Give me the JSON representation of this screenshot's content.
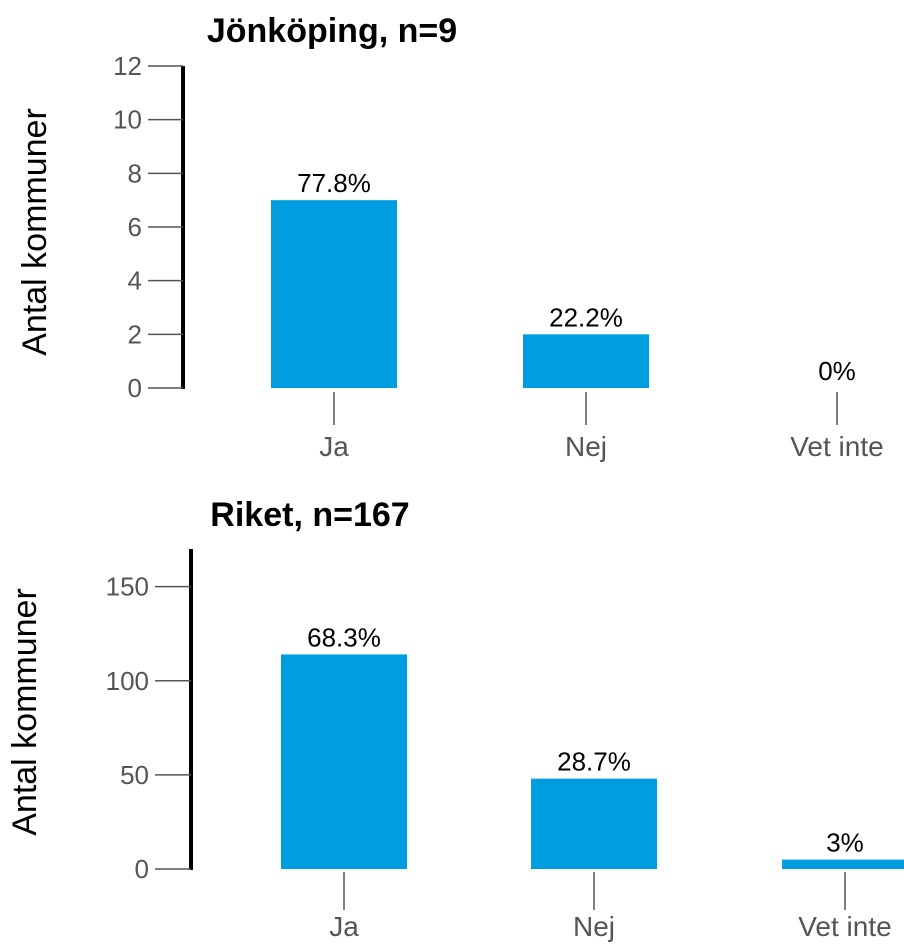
{
  "chart_data": [
    {
      "type": "bar",
      "title": "Jönköping, n=9",
      "ylabel": "Antal kommuner",
      "xlabel": "",
      "categories": [
        "Ja",
        "Nej",
        "Vet inte"
      ],
      "values": [
        7,
        2,
        0
      ],
      "data_labels": [
        "77.8%",
        "22.2%",
        "0%"
      ],
      "ylim": [
        0,
        12
      ],
      "yticks": [
        0,
        2,
        4,
        6,
        8,
        10,
        12
      ],
      "ytick_labels": [
        "0",
        "2",
        "4",
        "6",
        "8",
        "10",
        "12"
      ],
      "grid": false,
      "bar_color": "#009ee0"
    },
    {
      "type": "bar",
      "title": "Riket, n=167",
      "ylabel": "Antal kommuner",
      "xlabel": "",
      "categories": [
        "Ja",
        "Nej",
        "Vet inte"
      ],
      "values": [
        114,
        48,
        5
      ],
      "data_labels": [
        "68.3%",
        "28.7%",
        "3%"
      ],
      "ylim": [
        0,
        170
      ],
      "yticks": [
        0,
        50,
        100,
        150
      ],
      "ytick_labels": [
        "0",
        "50",
        "100",
        "150"
      ],
      "grid": false,
      "bar_color": "#009ee0"
    }
  ]
}
